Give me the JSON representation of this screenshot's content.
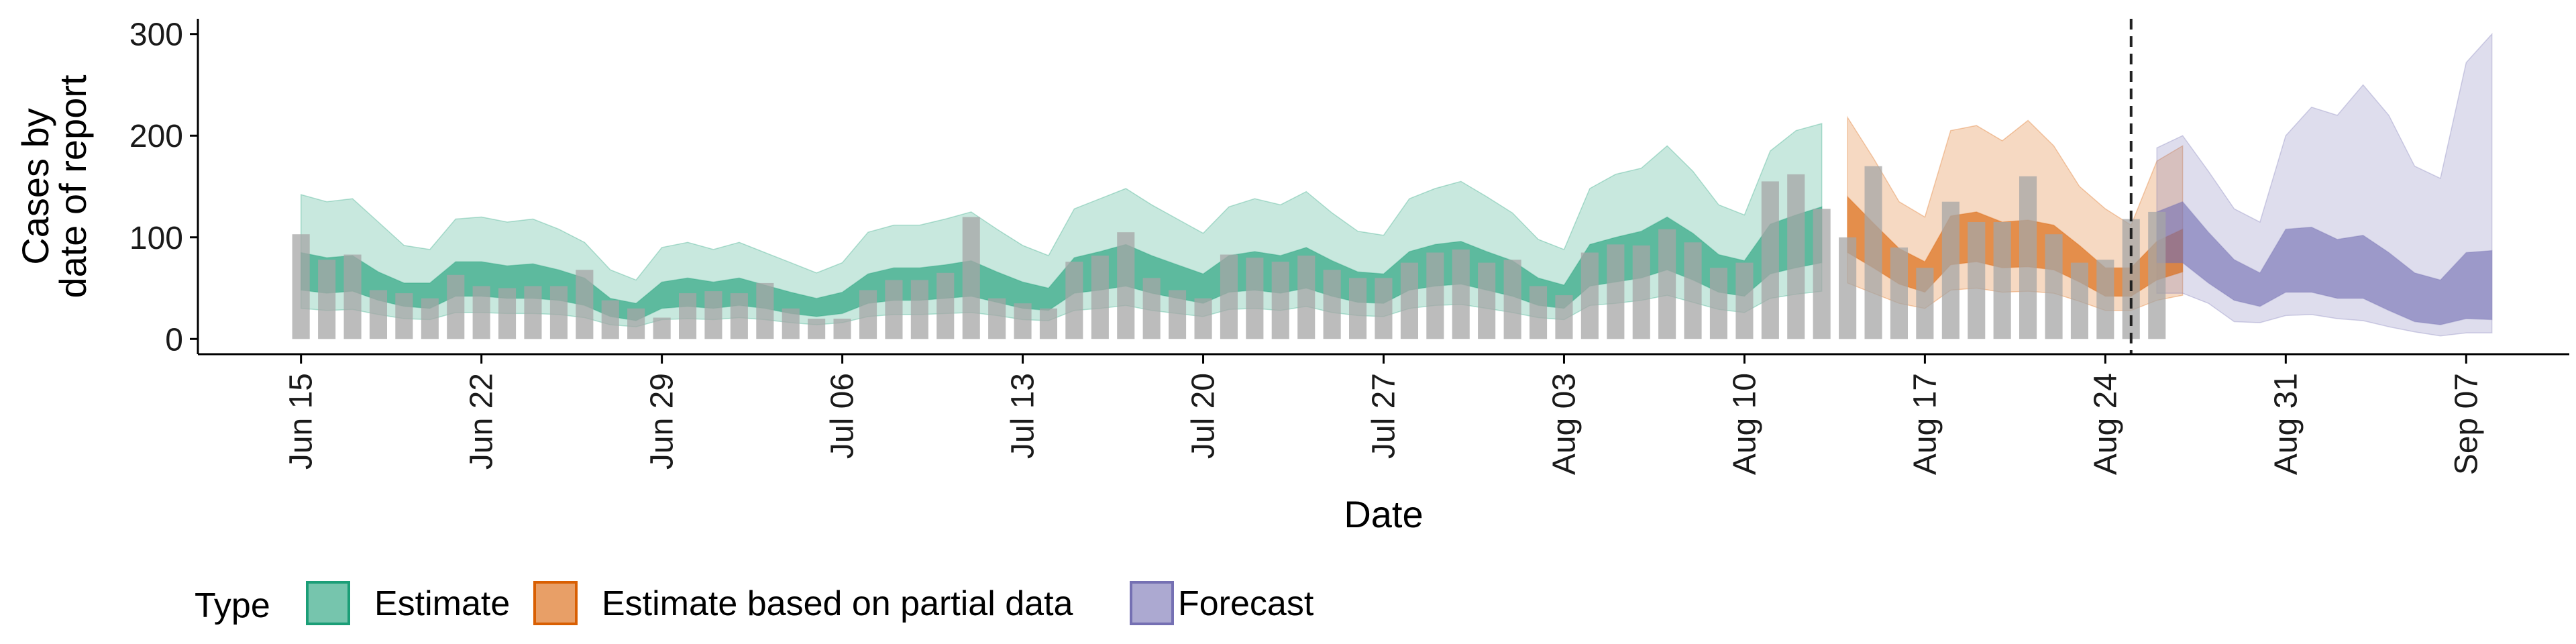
{
  "chart_data": {
    "type": "area",
    "x_type": "date",
    "xlabel": "Date",
    "ylabel_lines": [
      "Cases by",
      "date of report"
    ],
    "xlim": [
      "2020-06-11",
      "2020-09-11"
    ],
    "ylim": [
      -15,
      315
    ],
    "x_ticks": [
      {
        "date": "2020-06-15",
        "label": "Jun 15"
      },
      {
        "date": "2020-06-22",
        "label": "Jun 22"
      },
      {
        "date": "2020-06-29",
        "label": "Jun 29"
      },
      {
        "date": "2020-07-06",
        "label": "Jul 06"
      },
      {
        "date": "2020-07-13",
        "label": "Jul 13"
      },
      {
        "date": "2020-07-20",
        "label": "Jul 20"
      },
      {
        "date": "2020-07-27",
        "label": "Jul 27"
      },
      {
        "date": "2020-08-03",
        "label": "Aug 03"
      },
      {
        "date": "2020-08-10",
        "label": "Aug 10"
      },
      {
        "date": "2020-08-17",
        "label": "Aug 17"
      },
      {
        "date": "2020-08-24",
        "label": "Aug 24"
      },
      {
        "date": "2020-08-31",
        "label": "Aug 31"
      },
      {
        "date": "2020-09-07",
        "label": "Sep 07"
      }
    ],
    "y_ticks": [
      0,
      100,
      200,
      300
    ],
    "grid": false,
    "legend": {
      "title": "Type",
      "position": "bottom",
      "entries": [
        {
          "label": "Estimate",
          "color": "#1b9e77"
        },
        {
          "label": "Estimate based on partial data",
          "color": "#d95f02"
        },
        {
          "label": "Forecast",
          "color": "#7570b3"
        }
      ]
    },
    "reported_bar_color": "#a6a6a6",
    "reported_cases": {
      "start_date": "2020-06-15",
      "values": [
        103,
        78,
        83,
        48,
        45,
        40,
        63,
        52,
        50,
        52,
        52,
        68,
        38,
        30,
        21,
        45,
        47,
        45,
        55,
        30,
        20,
        20,
        48,
        58,
        58,
        65,
        120,
        40,
        35,
        30,
        76,
        82,
        105,
        60,
        48,
        40,
        83,
        80,
        76,
        82,
        68,
        60,
        60,
        75,
        85,
        88,
        75,
        78,
        52,
        43,
        85,
        93,
        92,
        108,
        95,
        70,
        75,
        155,
        162,
        128,
        100,
        170,
        90,
        70,
        135,
        115,
        115,
        160,
        103,
        75,
        78,
        118,
        125
      ]
    },
    "series": [
      {
        "name": "Estimate",
        "color": "#1b9e77",
        "start_date": "2020-06-15",
        "median": [
          65,
          60,
          62,
          50,
          42,
          42,
          58,
          58,
          55,
          56,
          52,
          45,
          30,
          25,
          42,
          45,
          42,
          45,
          40,
          35,
          30,
          35,
          48,
          52,
          52,
          55,
          58,
          50,
          42,
          38,
          60,
          65,
          70,
          62,
          55,
          48,
          62,
          65,
          62,
          68,
          58,
          50,
          48,
          65,
          70,
          72,
          65,
          58,
          45,
          40,
          70,
          75,
          80,
          90,
          78,
          62,
          58,
          85,
          92,
          98
        ],
        "inner_lo": [
          48,
          45,
          47,
          38,
          32,
          30,
          42,
          42,
          40,
          40,
          38,
          33,
          22,
          18,
          30,
          32,
          30,
          33,
          30,
          25,
          22,
          25,
          35,
          38,
          38,
          40,
          42,
          36,
          30,
          28,
          45,
          48,
          52,
          45,
          40,
          35,
          46,
          48,
          45,
          50,
          42,
          36,
          35,
          48,
          52,
          54,
          48,
          42,
          33,
          30,
          52,
          56,
          60,
          68,
          58,
          46,
          42,
          64,
          70,
          75
        ],
        "inner_hi": [
          85,
          80,
          82,
          66,
          55,
          55,
          76,
          76,
          72,
          74,
          68,
          60,
          40,
          35,
          56,
          60,
          56,
          60,
          53,
          46,
          40,
          46,
          64,
          70,
          70,
          73,
          77,
          66,
          56,
          50,
          80,
          86,
          93,
          82,
          73,
          64,
          82,
          86,
          82,
          90,
          77,
          66,
          64,
          86,
          93,
          96,
          86,
          77,
          60,
          53,
          93,
          100,
          106,
          120,
          104,
          83,
          77,
          113,
          122,
          130
        ],
        "outer_lo": [
          30,
          28,
          29,
          24,
          20,
          19,
          26,
          26,
          25,
          25,
          24,
          21,
          14,
          12,
          19,
          20,
          19,
          21,
          19,
          16,
          14,
          16,
          22,
          24,
          24,
          25,
          26,
          23,
          19,
          18,
          28,
          30,
          33,
          28,
          25,
          22,
          29,
          30,
          28,
          32,
          26,
          23,
          22,
          30,
          33,
          34,
          30,
          26,
          21,
          19,
          33,
          35,
          38,
          43,
          36,
          29,
          26,
          40,
          44,
          47
        ],
        "outer_hi": [
          142,
          135,
          138,
          115,
          92,
          88,
          118,
          120,
          115,
          118,
          108,
          95,
          68,
          58,
          90,
          95,
          88,
          95,
          85,
          75,
          65,
          75,
          105,
          112,
          112,
          118,
          125,
          108,
          92,
          82,
          128,
          138,
          148,
          132,
          118,
          104,
          130,
          138,
          132,
          145,
          124,
          106,
          102,
          138,
          148,
          155,
          140,
          124,
          98,
          88,
          148,
          162,
          168,
          190,
          165,
          132,
          122,
          185,
          205,
          212
        ]
      },
      {
        "name": "Estimate based on partial data",
        "color": "#d95f02",
        "start_date": "2020-08-14",
        "median": [
          110,
          90,
          70,
          60,
          95,
          98,
          90,
          92,
          88,
          72,
          55,
          55,
          75,
          85
        ],
        "inner_lo": [
          85,
          70,
          54,
          46,
          73,
          76,
          70,
          71,
          68,
          56,
          42,
          42,
          58,
          66
        ],
        "inner_hi": [
          140,
          114,
          89,
          76,
          121,
          125,
          115,
          117,
          112,
          92,
          70,
          70,
          96,
          108
        ],
        "outer_lo": [
          55,
          45,
          35,
          30,
          48,
          50,
          46,
          47,
          45,
          37,
          28,
          28,
          38,
          43
        ],
        "outer_hi": [
          218,
          178,
          135,
          120,
          205,
          210,
          195,
          215,
          190,
          150,
          128,
          112,
          175,
          190
        ]
      },
      {
        "name": "Forecast",
        "color": "#7570b3",
        "start_date": "2020-08-26",
        "median": [
          95,
          100,
          75,
          55,
          48,
          72,
          75,
          68,
          70,
          55,
          40,
          35,
          55,
          55
        ],
        "inner_lo": [
          75,
          75,
          55,
          38,
          32,
          46,
          46,
          40,
          40,
          28,
          17,
          14,
          20,
          19
        ],
        "inner_hi": [
          125,
          135,
          105,
          78,
          65,
          108,
          110,
          98,
          102,
          85,
          65,
          58,
          85,
          87
        ],
        "outer_lo": [
          45,
          45,
          35,
          17,
          16,
          23,
          24,
          20,
          18,
          12,
          7,
          3,
          6,
          6
        ],
        "outer_hi": [
          188,
          200,
          165,
          128,
          115,
          200,
          228,
          220,
          250,
          220,
          170,
          158,
          272,
          300
        ]
      }
    ],
    "annotations": [
      {
        "type": "vline",
        "date": "2020-08-25",
        "style": "dashed",
        "color": "#222222"
      }
    ]
  }
}
